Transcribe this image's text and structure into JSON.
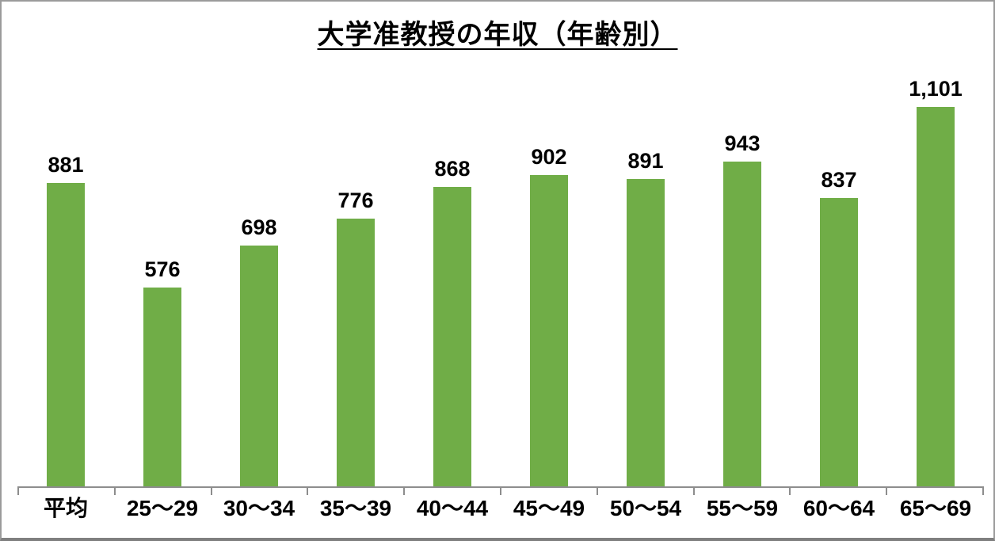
{
  "title": "大学准教授の年収（年齢別）",
  "chart_data": {
    "type": "bar",
    "title": "大学准教授の年収（年齢別）",
    "categories": [
      "平均",
      "25〜29",
      "30〜34",
      "35〜39",
      "40〜44",
      "45〜49",
      "50〜54",
      "55〜59",
      "60〜64",
      "65〜69"
    ],
    "values": [
      881,
      576,
      698,
      776,
      868,
      902,
      891,
      943,
      837,
      1101
    ],
    "value_labels": [
      "881",
      "576",
      "698",
      "776",
      "868",
      "902",
      "891",
      "943",
      "837",
      "1,101"
    ],
    "xlabel": "",
    "ylabel": "",
    "ylim": [
      0,
      1200
    ],
    "grid": false,
    "legend": false,
    "bar_color": "#70AD47",
    "axis_color": "#8d8d8d",
    "text_color": "#000000",
    "background_color": "#ffffff",
    "frame_border_color": "#9b9b9b"
  }
}
